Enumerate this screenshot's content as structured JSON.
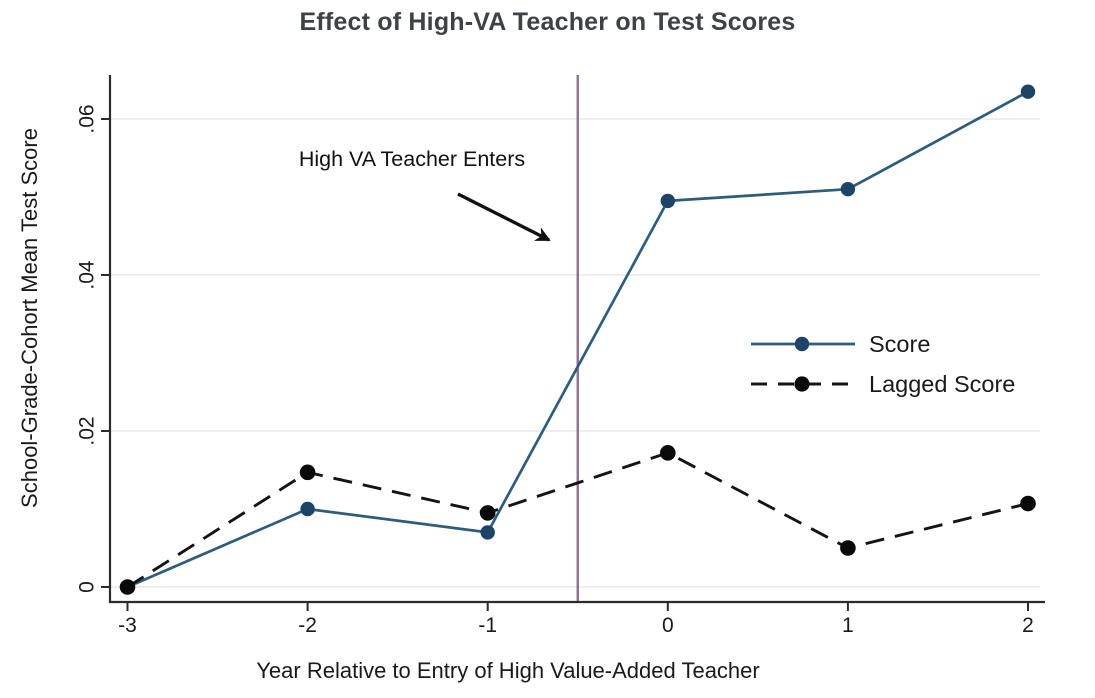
{
  "title": "Effect of High-VA Teacher on Test Scores",
  "chart_data": {
    "type": "line",
    "x": [
      -3,
      -2,
      -1,
      0,
      1,
      2
    ],
    "series": [
      {
        "name": "Score",
        "values": [
          0.0,
          0.01,
          0.007,
          0.0495,
          0.051,
          0.0635
        ],
        "color": "#2e5c7c",
        "marker_color": "#1d4467",
        "line_style": "solid"
      },
      {
        "name": "Lagged Score",
        "values": [
          0.0,
          0.0147,
          0.0095,
          0.0172,
          0.005,
          0.0107
        ],
        "color": "#141414",
        "marker_color": "#0a0a0a",
        "line_style": "dashed"
      }
    ],
    "xlabel": "Year Relative to Entry of High Value-Added Teacher",
    "ylabel": "School-Grade-Cohort Mean Test Score",
    "xticks": [
      -3,
      -2,
      -1,
      0,
      1,
      2
    ],
    "xtick_labels": [
      "-3",
      "-2",
      "-1",
      "0",
      "1",
      "2"
    ],
    "yticks": [
      0,
      0.02,
      0.04,
      0.06
    ],
    "ytick_labels": [
      "0",
      ".02",
      ".04",
      ".06"
    ],
    "xlim": [
      -3.1,
      2.1
    ],
    "ylim": [
      0,
      0.065
    ],
    "grid": "horizontal",
    "legend": {
      "position": "middle-right",
      "entries": [
        "Score",
        "Lagged Score"
      ]
    },
    "vline": {
      "x": -0.5,
      "color": "#8d7190"
    },
    "annotation": {
      "text": "High VA Teacher Enters"
    }
  },
  "colors": {
    "axis": "#2b2b2b",
    "grid": "#e9e9e9",
    "title": "#3f4245",
    "text": "#1a1a1a"
  }
}
